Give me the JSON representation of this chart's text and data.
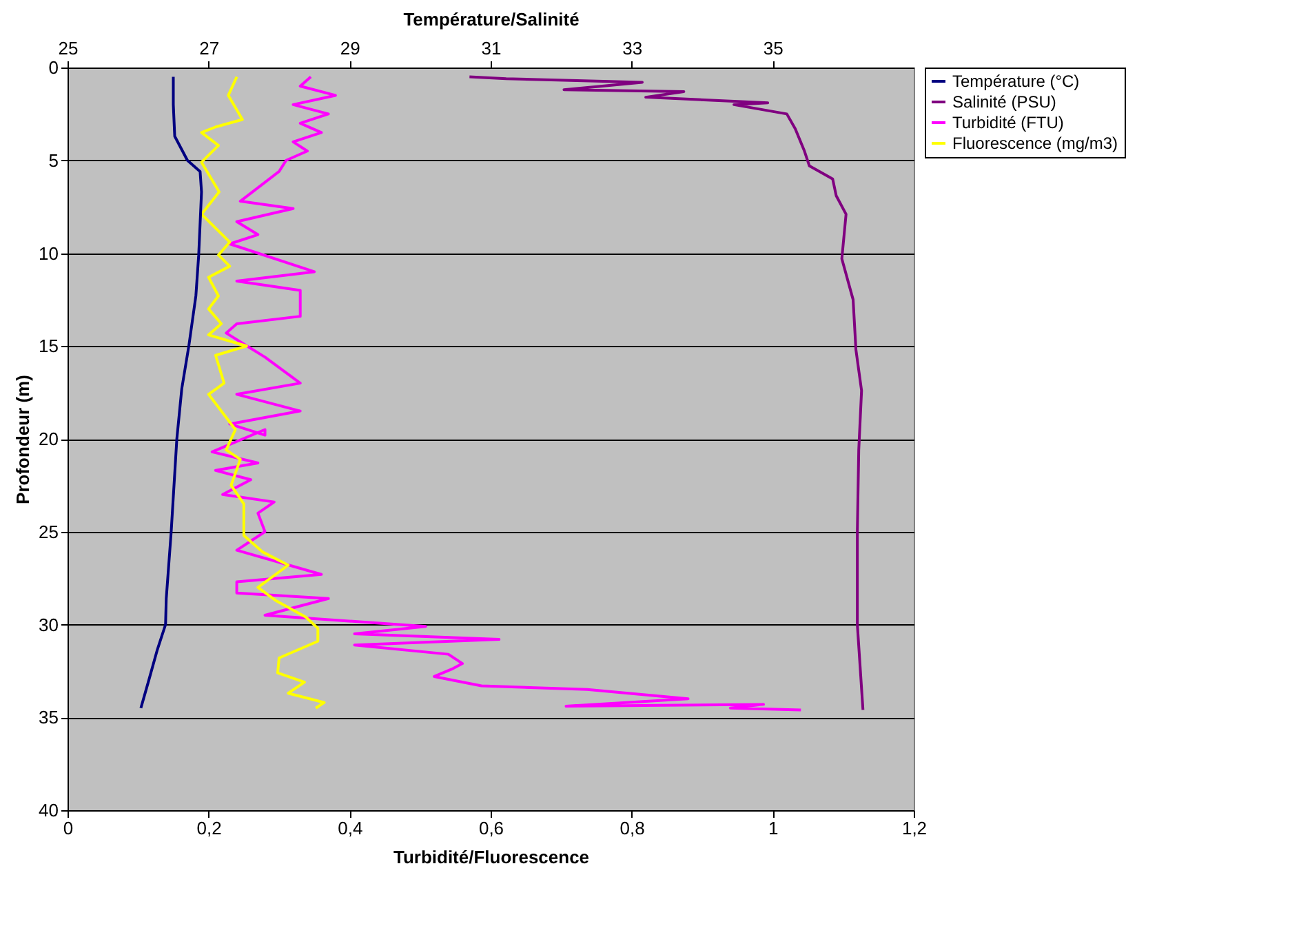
{
  "chart_data": {
    "type": "line",
    "xlabel": "Turbidité/Fluorescence",
    "x2label": "Température/Salinité",
    "ylabel": "Profondeur (m)",
    "xlim": [
      0,
      1.2
    ],
    "xticks": [
      0,
      {
        "value": 0.2,
        "label": "0,2"
      },
      {
        "value": 0.4,
        "label": "0,4"
      },
      {
        "value": 0.6,
        "label": "0,6"
      },
      {
        "value": 0.8,
        "label": "0,8"
      },
      1,
      {
        "value": 1.2,
        "label": "1,2"
      }
    ],
    "x2lim": [
      25,
      37
    ],
    "x2ticks": [
      25,
      27,
      29,
      31,
      33,
      35
    ],
    "ylim": [
      40,
      0
    ],
    "yticks": [
      0,
      5,
      10,
      15,
      20,
      25,
      30,
      35,
      40
    ],
    "grid": "y",
    "legend": "right",
    "line_style": "solid",
    "series": [
      {
        "name": "Température (°C)",
        "color": "#000080",
        "axis": "x2",
        "x": [
          26.5,
          26.5,
          26.52,
          26.7,
          26.88,
          26.9,
          26.86,
          26.82,
          26.72,
          26.62,
          26.55,
          26.47,
          26.4,
          26.39,
          26.27,
          26.16,
          26.04
        ],
        "values": [
          0.5,
          2,
          3.7,
          5,
          5.6,
          6.7,
          10.1,
          12.3,
          15,
          17.3,
          20,
          25,
          28.6,
          30,
          31.4,
          32.9,
          34.5
        ]
      },
      {
        "name": "Salinité (PSU)",
        "color": "#800080",
        "axis": "x2",
        "x": [
          30.7,
          31.22,
          33.15,
          32.04,
          33.74,
          33.2,
          34.93,
          34.45,
          35.2,
          35.32,
          35.45,
          35.52,
          35.85,
          35.9,
          36.04,
          35.98,
          36.14,
          36.18,
          36.26,
          36.22,
          36.2,
          36.2,
          36.28
        ],
        "values": [
          0.5,
          0.6,
          0.8,
          1.2,
          1.3,
          1.6,
          1.9,
          2.0,
          2.5,
          3.3,
          4.5,
          5.3,
          6,
          6.9,
          7.9,
          10.3,
          12.5,
          15.2,
          17.4,
          20.6,
          25,
          30,
          34.6
        ]
      },
      {
        "name": "Turbidité (FTU)",
        "color": "#ff00ff",
        "x": [
          0.345,
          0.33,
          0.38,
          0.32,
          0.37,
          0.33,
          0.36,
          0.32,
          0.34,
          0.31,
          0.3,
          0.245,
          0.32,
          0.24,
          0.27,
          0.23,
          0.35,
          0.24,
          0.33,
          0.33,
          0.24,
          0.225,
          0.28,
          0.33,
          0.24,
          0.33,
          0.23,
          0.28,
          0.28,
          0.205,
          0.27,
          0.21,
          0.26,
          0.22,
          0.293,
          0.27,
          0.28,
          0.24,
          0.36,
          0.24,
          0.24,
          0.37,
          0.28,
          0.508,
          0.407,
          0.612,
          0.407,
          0.54,
          0.56,
          0.545,
          0.52,
          0.587,
          0.737,
          0.88,
          0.707,
          0.987,
          0.94,
          1.04
        ],
        "values": [
          0.5,
          1,
          1.5,
          2,
          2.5,
          3,
          3.5,
          4,
          4.5,
          5,
          5.6,
          7.2,
          7.6,
          8.3,
          9,
          9.5,
          11,
          11.5,
          12,
          13.4,
          13.8,
          14.3,
          15.6,
          17,
          17.6,
          18.5,
          19.2,
          19.8,
          19.5,
          20.7,
          21.3,
          21.7,
          22.2,
          23,
          23.4,
          24,
          25,
          26,
          27.3,
          27.7,
          28.3,
          28.6,
          29.5,
          30.1,
          30.5,
          30.8,
          31.1,
          31.6,
          32.1,
          32.4,
          32.8,
          33.3,
          33.5,
          34,
          34.4,
          34.3,
          34.5,
          34.6
        ]
      },
      {
        "name": "Fluorescence (mg/m3)",
        "color": "#ffff00",
        "x": [
          0.24,
          0.228,
          0.248,
          0.21,
          0.19,
          0.214,
          0.19,
          0.215,
          0.19,
          0.23,
          0.214,
          0.23,
          0.2,
          0.214,
          0.2,
          0.218,
          0.2,
          0.254,
          0.21,
          0.222,
          0.2,
          0.238,
          0.225,
          0.245,
          0.232,
          0.25,
          0.25,
          0.277,
          0.313,
          0.27,
          0.295,
          0.338,
          0.355,
          0.355,
          0.3,
          0.298,
          0.336,
          0.313,
          0.364,
          0.352
        ],
        "values": [
          0.5,
          1.5,
          2.8,
          3.2,
          3.5,
          4.2,
          5.1,
          6.7,
          7.9,
          9.4,
          10.1,
          10.7,
          11.3,
          12.3,
          13,
          13.8,
          14.4,
          15,
          15.5,
          17,
          17.6,
          19.5,
          20.6,
          21.1,
          22.5,
          23.5,
          25.2,
          26.1,
          26.8,
          28,
          28.7,
          29.6,
          30.2,
          30.9,
          31.8,
          32.6,
          33.1,
          33.7,
          34.2,
          34.5
        ]
      }
    ]
  }
}
